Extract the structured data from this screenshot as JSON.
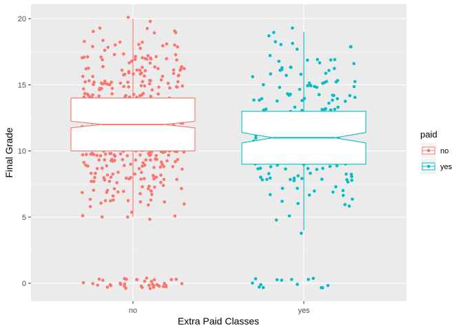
{
  "chart_data": {
    "type": "boxplot-jitter",
    "xlabel": "Extra Paid Classes",
    "ylabel": "Final Grade",
    "categories": [
      "no",
      "yes"
    ],
    "ylim": [
      -1.35,
      21.1
    ],
    "yticks": [
      0,
      5,
      10,
      15,
      20
    ],
    "grid": true,
    "legend": {
      "title": "paid",
      "position": "right",
      "entries": [
        {
          "label": "no",
          "color": "#F8766D"
        },
        {
          "label": "yes",
          "color": "#00BFC4"
        }
      ]
    },
    "boxes": [
      {
        "category": "no",
        "color": "#F8766D",
        "q1": 10,
        "median": 12,
        "q3": 14,
        "notch_low": 11.75,
        "notch_high": 12.25,
        "whisker_low": 5,
        "whisker_high": 20
      },
      {
        "category": "yes",
        "color": "#00BFC4",
        "q1": 9,
        "median": 11,
        "q3": 13,
        "notch_low": 10.6,
        "notch_high": 11.4,
        "whisker_low": 4,
        "whisker_high": 19
      }
    ],
    "points": [
      {
        "category": "no",
        "n": 520,
        "grade_distribution": {
          "0": 38,
          "5": 6,
          "6": 12,
          "7": 18,
          "8": 28,
          "9": 34,
          "10": 58,
          "11": 62,
          "12": 56,
          "13": 54,
          "14": 44,
          "15": 36,
          "16": 30,
          "17": 22,
          "18": 14,
          "19": 6,
          "20": 2
        }
      },
      {
        "category": "yes",
        "n": 240,
        "grade_distribution": {
          "0": 14,
          "4": 1,
          "5": 2,
          "6": 5,
          "7": 9,
          "8": 18,
          "9": 22,
          "10": 30,
          "11": 28,
          "12": 26,
          "13": 22,
          "14": 18,
          "15": 16,
          "16": 12,
          "17": 8,
          "18": 6,
          "19": 3
        }
      }
    ]
  }
}
